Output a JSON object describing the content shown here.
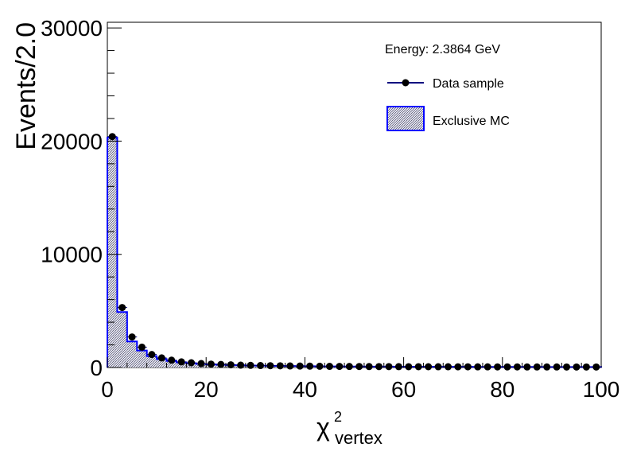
{
  "chart_data": {
    "type": "histogram",
    "xlabel": "χ",
    "xlabel_superscript": "2",
    "xlabel_subscript": "vertex",
    "ylabel": "Events/2.0",
    "xlim": [
      0,
      100
    ],
    "ylim": [
      0,
      30500
    ],
    "x_ticks": [
      0,
      20,
      40,
      60,
      80,
      100
    ],
    "y_ticks": [
      0,
      10000,
      20000,
      30000
    ],
    "x_tick_labels": [
      "0",
      "20",
      "40",
      "60",
      "80",
      "100"
    ],
    "y_tick_labels": [
      "0",
      "10000",
      "20000",
      "30000"
    ],
    "bin_width": 2.0,
    "legend": {
      "position": "top-right",
      "header": "Energy: 2.3864 GeV",
      "data_label": "Data sample",
      "mc_label": "Exclusive MC"
    },
    "colors": {
      "data": "#000000",
      "data_line": "#00007f",
      "mc_line": "#0000ff",
      "mc_fill": "#e0e0ee"
    },
    "bin_centers": [
      1,
      3,
      5,
      7,
      9,
      11,
      13,
      15,
      17,
      19,
      21,
      23,
      25,
      27,
      29,
      31,
      33,
      35,
      37,
      39,
      41,
      43,
      45,
      47,
      49,
      51,
      53,
      55,
      57,
      59,
      61,
      63,
      65,
      67,
      69,
      71,
      73,
      75,
      77,
      79,
      81,
      83,
      85,
      87,
      89,
      91,
      93,
      95,
      97,
      99
    ],
    "mc_values": [
      20300,
      4900,
      2300,
      1500,
      1000,
      750,
      580,
      460,
      380,
      320,
      280,
      250,
      220,
      200,
      180,
      165,
      150,
      140,
      130,
      120,
      112,
      105,
      100,
      95,
      90,
      86,
      82,
      78,
      75,
      72,
      70,
      68,
      66,
      64,
      62,
      60,
      58,
      56,
      55,
      54,
      52,
      51,
      50,
      49,
      48,
      47,
      46,
      45,
      44,
      43
    ],
    "data_values": [
      20400,
      5300,
      2700,
      1800,
      1150,
      850,
      650,
      500,
      420,
      350,
      300,
      270,
      240,
      210,
      190,
      175,
      160,
      150,
      140,
      130,
      120,
      112,
      105,
      100,
      96,
      90,
      86,
      82,
      80,
      76,
      74,
      72,
      70,
      68,
      66,
      64,
      62,
      60,
      58,
      57,
      55,
      54,
      52,
      51,
      50,
      49,
      48,
      47,
      46,
      45
    ]
  }
}
